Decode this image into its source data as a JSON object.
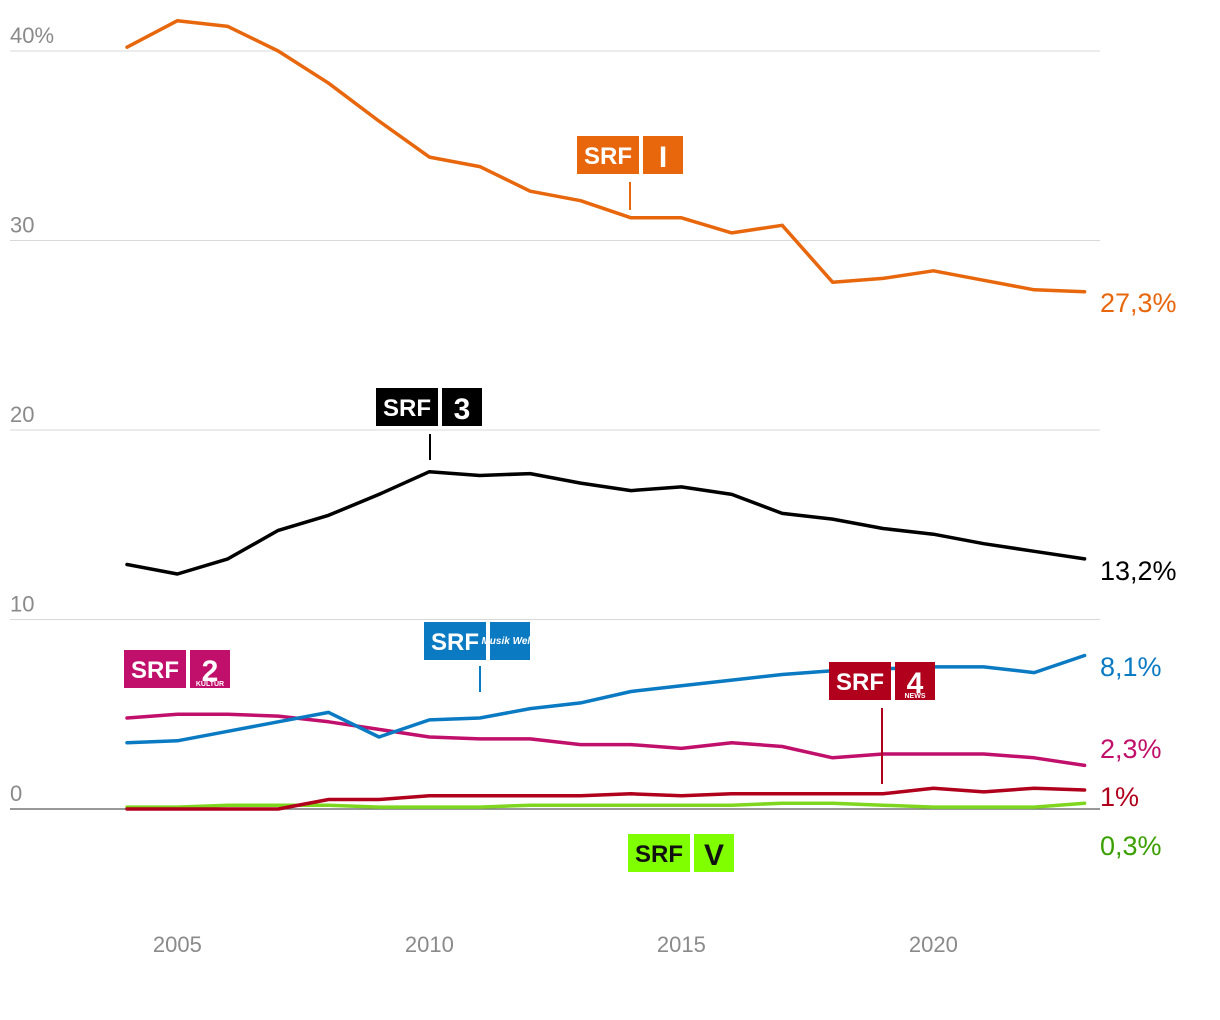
{
  "chart_data": {
    "type": "line",
    "title": "",
    "xlabel": "",
    "ylabel": "",
    "ylim": [
      0,
      40
    ],
    "xlim": [
      2004,
      2023
    ],
    "y_ticks": [
      {
        "value": 40,
        "label": "40%"
      },
      {
        "value": 30,
        "label": "30"
      },
      {
        "value": 20,
        "label": "20"
      },
      {
        "value": 10,
        "label": "10"
      },
      {
        "value": 0,
        "label": "0"
      }
    ],
    "x_ticks": [
      {
        "value": 2005,
        "label": "2005"
      },
      {
        "value": 2010,
        "label": "2010"
      },
      {
        "value": 2015,
        "label": "2015"
      },
      {
        "value": 2020,
        "label": "2020"
      }
    ],
    "x": [
      2004,
      2005,
      2006,
      2007,
      2008,
      2009,
      2010,
      2011,
      2012,
      2013,
      2014,
      2015,
      2016,
      2017,
      2018,
      2019,
      2020,
      2021,
      2022,
      2023
    ],
    "series": [
      {
        "id": "srf1",
        "name": "SRF 1",
        "color": "#e8670c",
        "end_label": "27,3%",
        "values": [
          40.2,
          41.6,
          41.3,
          40.0,
          38.3,
          36.3,
          34.4,
          33.9,
          32.6,
          32.1,
          31.2,
          31.2,
          30.4,
          30.8,
          27.8,
          28.0,
          28.4,
          27.9,
          27.4,
          27.3
        ]
      },
      {
        "id": "srf3",
        "name": "SRF 3",
        "color": "#000000",
        "end_label": "13,2%",
        "values": [
          12.9,
          12.4,
          13.2,
          14.7,
          15.5,
          16.6,
          17.8,
          17.6,
          17.7,
          17.2,
          16.8,
          17.0,
          16.6,
          15.6,
          15.3,
          14.8,
          14.5,
          14.0,
          13.6,
          13.2
        ]
      },
      {
        "id": "musikwelle",
        "name": "SRF Musikwelle",
        "color": "#0a7ac3",
        "end_label": "8,1%",
        "values": [
          3.5,
          3.6,
          4.1,
          4.6,
          5.1,
          3.8,
          4.7,
          4.8,
          5.3,
          5.6,
          6.2,
          6.5,
          6.8,
          7.1,
          7.3,
          7.4,
          7.5,
          7.5,
          7.2,
          8.1
        ]
      },
      {
        "id": "srf2",
        "name": "SRF 2 Kultur",
        "color": "#c1106b",
        "end_label": "2,3%",
        "values": [
          4.8,
          5.0,
          5.0,
          4.9,
          4.6,
          4.2,
          3.8,
          3.7,
          3.7,
          3.4,
          3.4,
          3.2,
          3.5,
          3.3,
          2.7,
          2.9,
          2.9,
          2.9,
          2.7,
          2.3
        ]
      },
      {
        "id": "srf4",
        "name": "SRF 4 News",
        "color": "#b0001c",
        "end_label": "1%",
        "values": [
          0,
          0,
          0,
          0,
          0.5,
          0.5,
          0.7,
          0.7,
          0.7,
          0.7,
          0.8,
          0.7,
          0.8,
          0.8,
          0.8,
          0.8,
          1.1,
          0.9,
          1.1,
          1.0
        ]
      },
      {
        "id": "virus",
        "name": "SRF Virus",
        "color": "#7fd61e",
        "label_color": "#3aa000",
        "end_label": "0,3%",
        "values": [
          0.1,
          0.1,
          0.2,
          0.2,
          0.2,
          0.1,
          0.1,
          0.1,
          0.2,
          0.2,
          0.2,
          0.2,
          0.2,
          0.3,
          0.3,
          0.2,
          0.1,
          0.1,
          0.1,
          0.3
        ]
      }
    ]
  },
  "logos": {
    "srf1": {
      "brand": "SRF",
      "mark": "I",
      "color": "#e8670c"
    },
    "srf3": {
      "brand": "SRF",
      "mark": "3",
      "color": "#000000"
    },
    "musikwelle": {
      "brand": "SRF",
      "mark": "Musik Welle",
      "color": "#0a7ac3"
    },
    "srf2": {
      "brand": "SRF",
      "mark": "2",
      "sub": "KULTUR",
      "color": "#c1106b"
    },
    "srf4": {
      "brand": "SRF",
      "mark": "4",
      "sub": "NEWS",
      "color": "#b0001c"
    },
    "virus": {
      "brand": "SRF",
      "mark": "V",
      "color": "#7fff00"
    }
  }
}
